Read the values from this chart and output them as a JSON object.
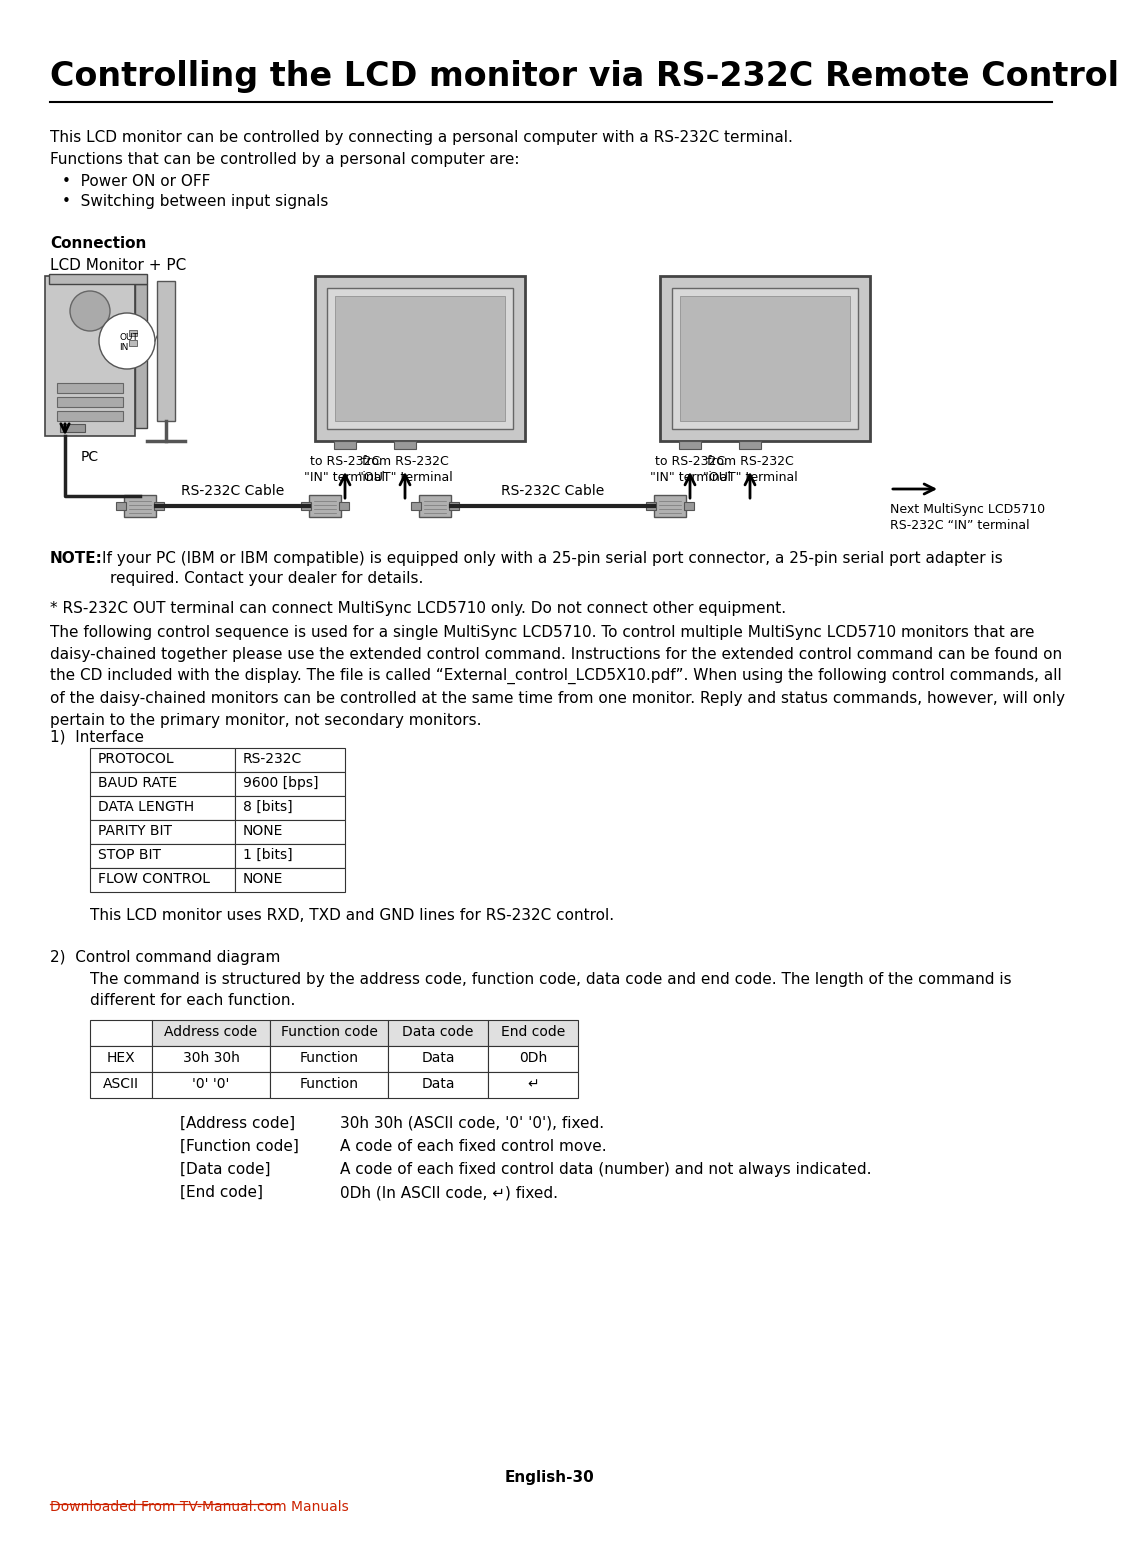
{
  "title": "Controlling the LCD monitor via RS-232C Remote Control",
  "bg_color": "#ffffff",
  "intro_text": "This LCD monitor can be controlled by connecting a personal computer with a RS-232C terminal.",
  "functions_header": "Functions that can be controlled by a personal computer are:",
  "bullet1": "Power ON or OFF",
  "bullet2": "Switching between input signals",
  "connection_header": "Connection",
  "lcd_monitor_pc": "LCD Monitor + PC",
  "pc_label": "PC",
  "rs232c_cable1": "RS-232C Cable",
  "rs232c_cable2": "RS-232C Cable",
  "to_rs232c_in1": "to RS-232C\n\"IN\" terminal",
  "from_rs232c_out1": "from RS-232C\n\"OUT\" terminal",
  "to_rs232c_in2": "to RS-232C\n\"IN\" terminal",
  "from_rs232c_out2": "from RS-232C\n\"OUT\" terminal",
  "out_label": "OUT",
  "in_label": "IN",
  "next_monitor": "Next MultiSync LCD5710\nRS-232C “IN” terminal",
  "note_bold": "NOTE:",
  "note_line1": "If your PC (IBM or IBM compatible) is equipped only with a 25-pin serial port connector, a 25-pin serial port adapter is",
  "note_line2": "required. Contact your dealer for details.",
  "asterisk_text": "* RS-232C OUT terminal can connect MultiSync LCD5710 only. Do not connect other equipment.",
  "daisy_chain_text": "The following control sequence is used for a single MultiSync LCD5710. To control multiple MultiSync LCD5710 monitors that are\ndaisy-chained together please use the extended control command. Instructions for the extended control command can be found on\nthe CD included with the display. The file is called “External_control_LCD5X10.pdf”. When using the following control commands, all\nof the daisy-chained monitors can be controlled at the same time from one monitor. Reply and status commands, however, will only\npertain to the primary monitor, not secondary monitors.",
  "interface_num": "1)",
  "interface_label": "Interface",
  "interface_table": [
    [
      "PROTOCOL",
      "RS-232C"
    ],
    [
      "BAUD RATE",
      "9600 [bps]"
    ],
    [
      "DATA LENGTH",
      "8 [bits]"
    ],
    [
      "PARITY BIT",
      "NONE"
    ],
    [
      "STOP BIT",
      "1 [bits]"
    ],
    [
      "FLOW CONTROL",
      "NONE"
    ]
  ],
  "rxd_text": "This LCD monitor uses RXD, TXD and GND lines for RS-232C control.",
  "control_num": "2)",
  "control_label": "Control command diagram",
  "control_desc": "The command is structured by the address code, function code, data code and end code. The length of the command is\ndifferent for each function.",
  "cmd_table_headers": [
    "",
    "Address code",
    "Function code",
    "Data code",
    "End code"
  ],
  "cmd_table_rows": [
    [
      "HEX",
      "30h 30h",
      "Function",
      "Data",
      "0Dh"
    ],
    [
      "ASCII",
      "'0' '0'",
      "Function",
      "Data",
      "↵"
    ]
  ],
  "legend_items": [
    [
      "[Address code]",
      "30h 30h (ASCII code, '0' '0'), fixed."
    ],
    [
      "[Function code]",
      "A code of each fixed control move."
    ],
    [
      "[Data code]",
      "A code of each fixed control data (number) and not always indicated."
    ],
    [
      "[End code]",
      "0Dh (In ASCII code, ↵) fixed."
    ]
  ],
  "page_num": "English-30",
  "footer_link": "Downloaded From TV-Manual.com Manuals",
  "footer_link_color": "#cc2200"
}
